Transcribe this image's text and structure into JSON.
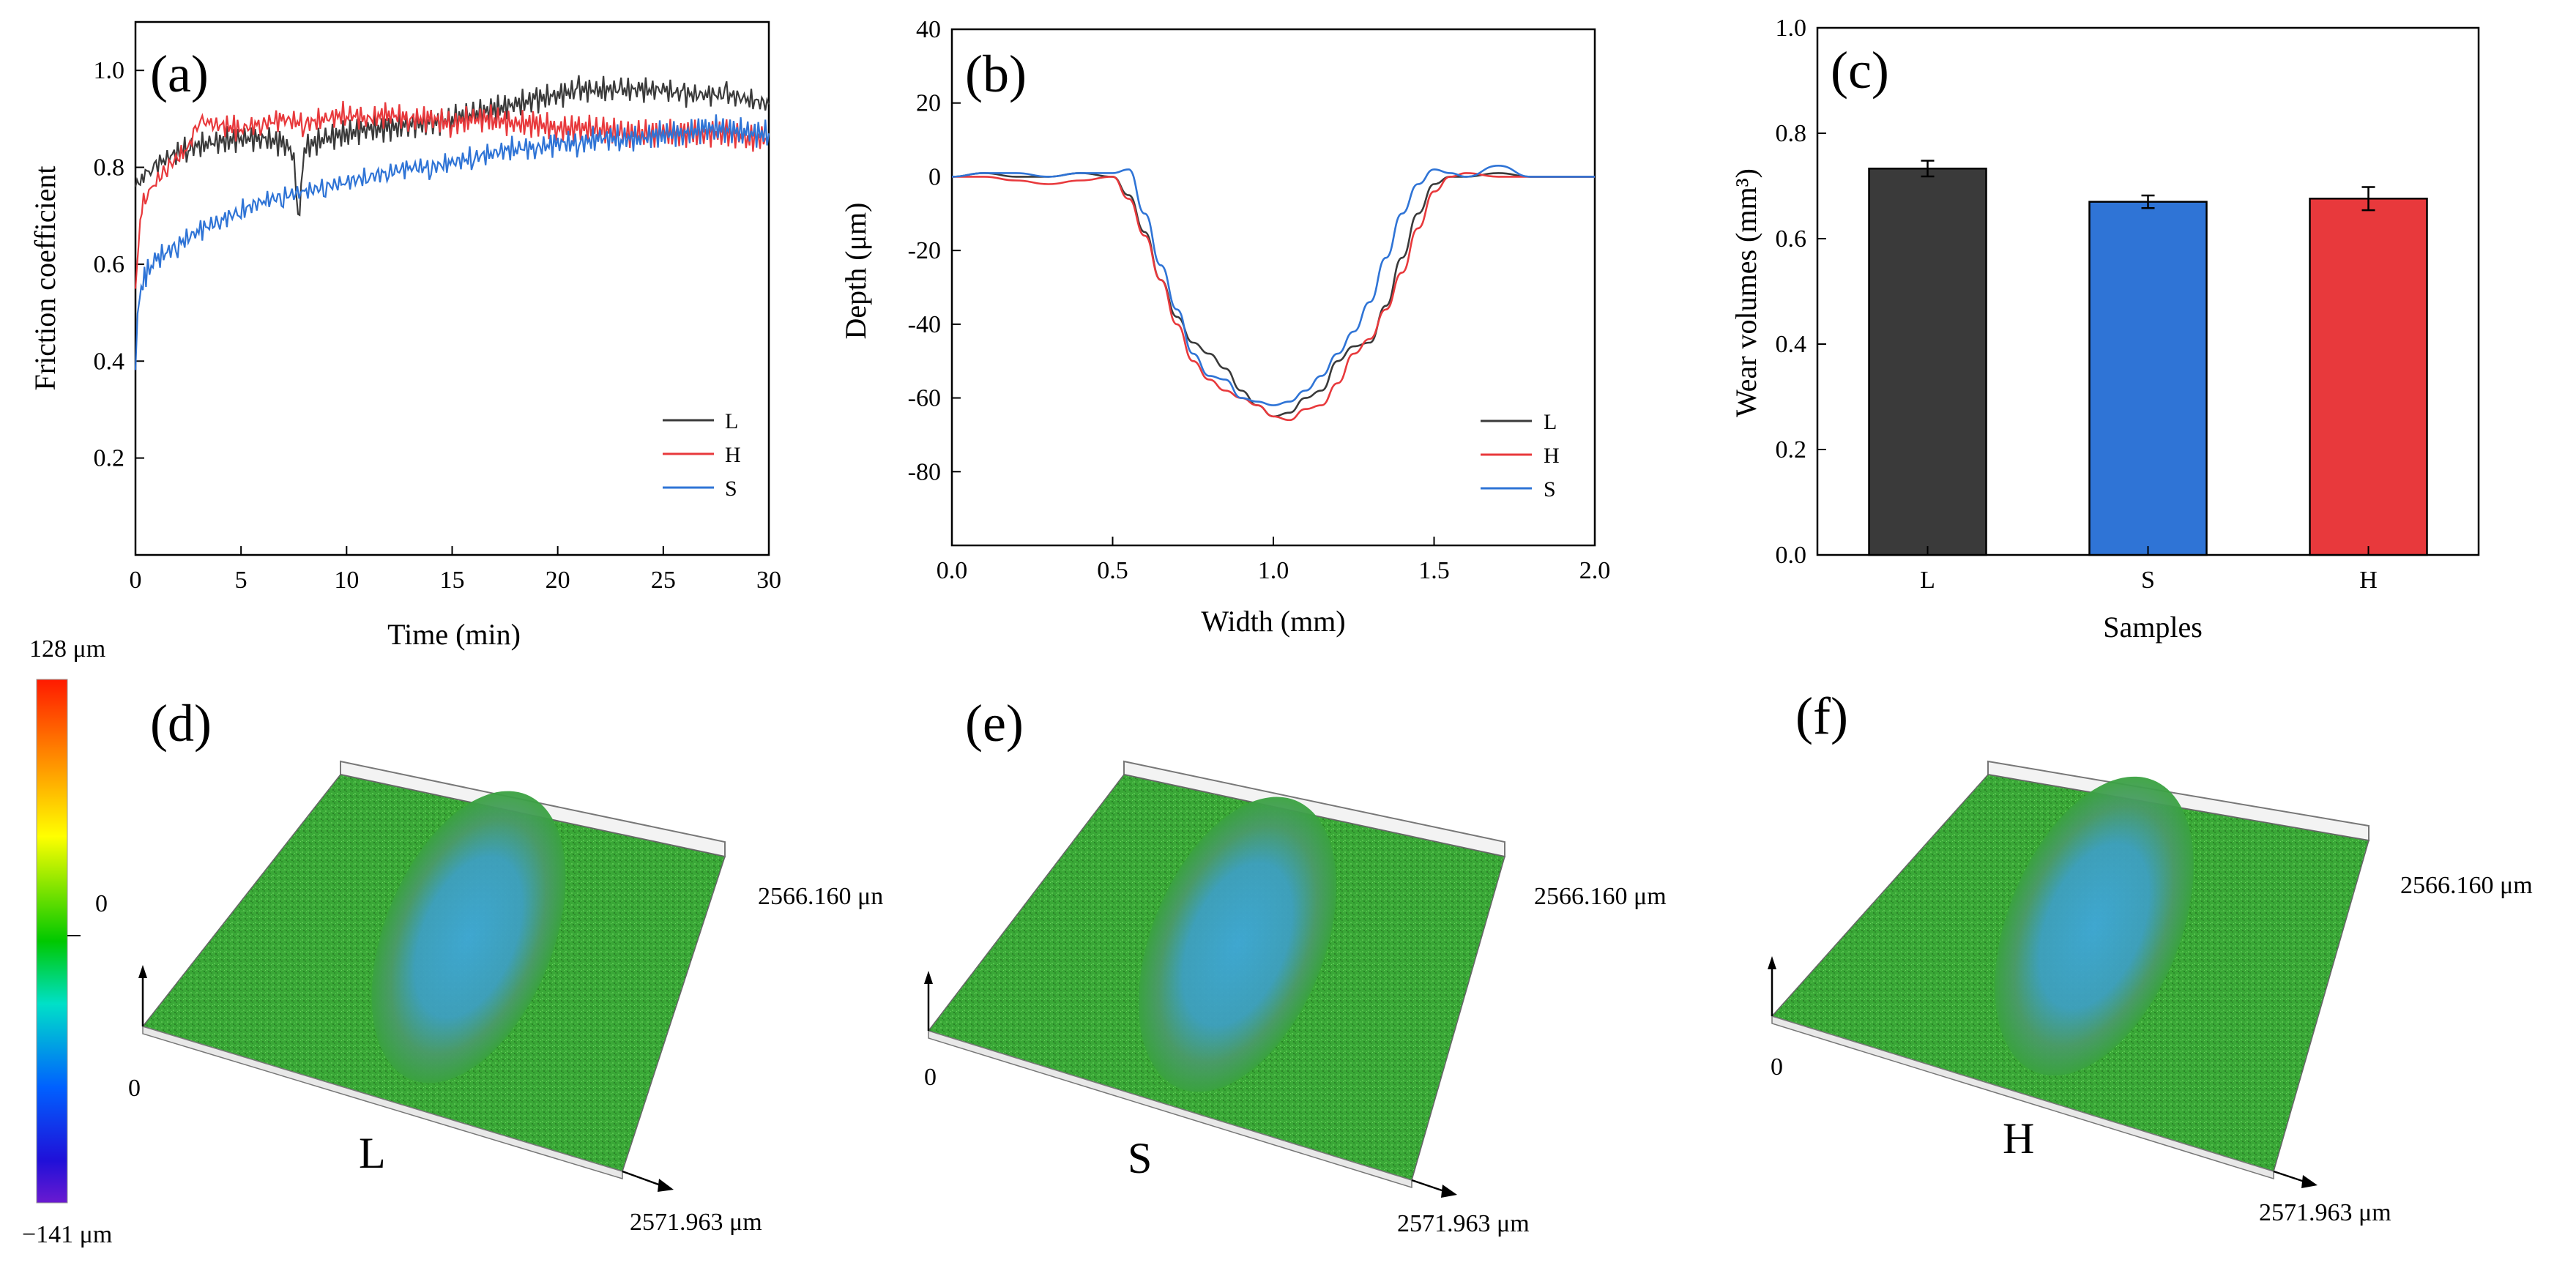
{
  "colors": {
    "L": "#3a3a3a",
    "H": "#e8393c",
    "S": "#2f74d6"
  },
  "chart_data": [
    {
      "id": "a",
      "type": "line",
      "panel_label": "(a)",
      "title": "",
      "xlabel": "Time (min)",
      "ylabel": "Friction coefficient",
      "xlim": [
        0,
        30
      ],
      "ylim": [
        0.0,
        1.1
      ],
      "xticks": [
        "0",
        "5",
        "10",
        "15",
        "20",
        "25",
        "30"
      ],
      "yticks": [
        "0.2",
        "0.4",
        "0.6",
        "0.8",
        "1.0"
      ],
      "legend": [
        "L",
        "H",
        "S"
      ],
      "series": [
        {
          "name": "L",
          "x": [
            0,
            0.3,
            0.8,
            1.5,
            2.5,
            3.5,
            5,
            6,
            7,
            7.5,
            7.7,
            8,
            9,
            10,
            11,
            12,
            13,
            14,
            15,
            16,
            17,
            18,
            19,
            20,
            21,
            22,
            23,
            24,
            25,
            26,
            27,
            28,
            29,
            30
          ],
          "y": [
            0.76,
            0.78,
            0.8,
            0.82,
            0.84,
            0.85,
            0.86,
            0.86,
            0.85,
            0.83,
            0.68,
            0.84,
            0.86,
            0.87,
            0.88,
            0.88,
            0.89,
            0.89,
            0.9,
            0.91,
            0.92,
            0.93,
            0.94,
            0.95,
            0.96,
            0.96,
            0.96,
            0.96,
            0.96,
            0.95,
            0.95,
            0.95,
            0.94,
            0.93
          ]
        },
        {
          "name": "H",
          "x": [
            0,
            0.3,
            0.8,
            1.5,
            2.5,
            3,
            3.5,
            5,
            6,
            7,
            8,
            9,
            10,
            11,
            12,
            13,
            14,
            15,
            16,
            17,
            18,
            19,
            20,
            21,
            22,
            23,
            24,
            25,
            26,
            27,
            28,
            29,
            30
          ],
          "y": [
            0.56,
            0.72,
            0.76,
            0.8,
            0.84,
            0.9,
            0.89,
            0.88,
            0.89,
            0.9,
            0.89,
            0.9,
            0.91,
            0.9,
            0.91,
            0.9,
            0.9,
            0.89,
            0.9,
            0.9,
            0.89,
            0.89,
            0.88,
            0.88,
            0.88,
            0.87,
            0.87,
            0.87,
            0.87,
            0.87,
            0.87,
            0.86,
            0.86
          ]
        },
        {
          "name": "S",
          "x": [
            0,
            0.2,
            0.5,
            1,
            2,
            3,
            4,
            5,
            6,
            7,
            8,
            9,
            10,
            11,
            12,
            13,
            14,
            15,
            16,
            17,
            18,
            19,
            20,
            21,
            22,
            23,
            24,
            25,
            26,
            27,
            28,
            29,
            30
          ],
          "y": [
            0.4,
            0.54,
            0.58,
            0.61,
            0.64,
            0.67,
            0.69,
            0.71,
            0.73,
            0.74,
            0.75,
            0.76,
            0.77,
            0.78,
            0.79,
            0.8,
            0.8,
            0.81,
            0.82,
            0.83,
            0.84,
            0.84,
            0.85,
            0.85,
            0.86,
            0.86,
            0.86,
            0.87,
            0.87,
            0.88,
            0.88,
            0.87,
            0.87
          ]
        }
      ]
    },
    {
      "id": "b",
      "type": "line",
      "panel_label": "(b)",
      "title": "",
      "xlabel": "Width (mm)",
      "ylabel": "Depth (μm)",
      "xlim": [
        0.0,
        2.0
      ],
      "ylim": [
        -100,
        40
      ],
      "xticks": [
        "0.0",
        "0.5",
        "1.0",
        "1.5",
        "2.0"
      ],
      "yticks": [
        "40",
        "20",
        "0",
        "-20",
        "-40",
        "-60",
        "-80"
      ],
      "legend": [
        "L",
        "H",
        "S"
      ],
      "series": [
        {
          "name": "L",
          "x": [
            0.0,
            0.1,
            0.2,
            0.3,
            0.4,
            0.5,
            0.55,
            0.6,
            0.65,
            0.7,
            0.75,
            0.8,
            0.85,
            0.9,
            0.95,
            1.0,
            1.05,
            1.1,
            1.15,
            1.2,
            1.25,
            1.3,
            1.35,
            1.4,
            1.45,
            1.5,
            1.55,
            1.6,
            1.7,
            1.8,
            1.9,
            2.0
          ],
          "y": [
            0,
            1,
            0,
            0,
            1,
            0,
            -5,
            -15,
            -28,
            -38,
            -45,
            -48,
            -52,
            -58,
            -62,
            -65,
            -64,
            -60,
            -58,
            -50,
            -46,
            -45,
            -35,
            -22,
            -10,
            -2,
            0,
            0,
            1,
            0,
            0,
            0
          ]
        },
        {
          "name": "H",
          "x": [
            0.0,
            0.1,
            0.2,
            0.3,
            0.4,
            0.5,
            0.55,
            0.6,
            0.65,
            0.7,
            0.75,
            0.8,
            0.85,
            0.9,
            0.95,
            1.0,
            1.05,
            1.1,
            1.15,
            1.2,
            1.25,
            1.3,
            1.35,
            1.4,
            1.45,
            1.5,
            1.55,
            1.6,
            1.7,
            1.8,
            1.9,
            2.0
          ],
          "y": [
            0,
            0,
            -1,
            -2,
            -1,
            0,
            -6,
            -16,
            -28,
            -40,
            -50,
            -55,
            -58,
            -60,
            -62,
            -65,
            -66,
            -63,
            -62,
            -56,
            -48,
            -44,
            -36,
            -26,
            -14,
            -4,
            0,
            1,
            0,
            0,
            0,
            0
          ]
        },
        {
          "name": "S",
          "x": [
            0.0,
            0.1,
            0.2,
            0.3,
            0.4,
            0.5,
            0.55,
            0.6,
            0.65,
            0.7,
            0.75,
            0.8,
            0.85,
            0.9,
            0.95,
            1.0,
            1.05,
            1.1,
            1.15,
            1.2,
            1.25,
            1.3,
            1.35,
            1.4,
            1.45,
            1.5,
            1.55,
            1.6,
            1.7,
            1.8,
            1.9,
            2.0
          ],
          "y": [
            0,
            1,
            1,
            0,
            1,
            1,
            2,
            -10,
            -24,
            -36,
            -48,
            -54,
            -55,
            -60,
            -61,
            -62,
            -61,
            -58,
            -54,
            -48,
            -42,
            -34,
            -22,
            -10,
            -2,
            2,
            1,
            0,
            3,
            0,
            0,
            0
          ]
        }
      ]
    },
    {
      "id": "c",
      "type": "bar",
      "panel_label": "(c)",
      "title": "",
      "xlabel": "Samples",
      "ylabel": "Wear volumes (mm³)",
      "ylim": [
        0.0,
        1.0
      ],
      "yticks": [
        "0.0",
        "0.2",
        "0.4",
        "0.6",
        "0.8",
        "1.0"
      ],
      "categories": [
        "L",
        "S",
        "H"
      ],
      "values": [
        0.733,
        0.67,
        0.676
      ],
      "errors": [
        0.015,
        0.012,
        0.022
      ]
    }
  ],
  "colorbar": {
    "max_label": "128 μm",
    "zero_label": "0",
    "min_label": "−141 μm"
  },
  "surfaces": [
    {
      "id": "d",
      "panel_label": "(d)",
      "sample": "L",
      "origin_label": "0",
      "width_label": "2566.160 μn",
      "length_label": "2571.963 μm"
    },
    {
      "id": "e",
      "panel_label": "(e)",
      "sample": "S",
      "origin_label": "0",
      "width_label": "2566.160 μm",
      "length_label": "2571.963 μm"
    },
    {
      "id": "f",
      "panel_label": "(f)",
      "sample": "H",
      "origin_label": "0",
      "width_label": "2566.160 μm",
      "length_label": "2571.963 μm"
    }
  ]
}
